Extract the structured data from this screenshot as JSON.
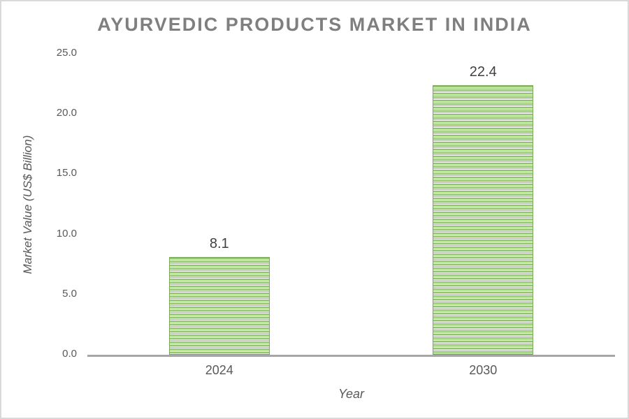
{
  "chart_data": {
    "type": "bar",
    "title": "AYURVEDIC PRODUCTS MARKET IN INDIA",
    "categories": [
      "2024",
      "2030"
    ],
    "values": [
      8.1,
      22.4
    ],
    "value_labels": [
      "8.1",
      "22.4"
    ],
    "xlabel": "Year",
    "ylabel": "Market Value (US$ Billion)",
    "ylim": [
      0,
      25
    ],
    "yticks": [
      0,
      5,
      10,
      15,
      20,
      25
    ],
    "ytick_labels": [
      "0.0",
      "5.0",
      "10.0",
      "15.0",
      "20.0",
      "25.0"
    ],
    "grid": false,
    "legend": false,
    "bar_fill_pattern": "horizontal-stripes",
    "colors": {
      "bar_green": "#8fc46d",
      "bar_green_2": "#9ccb7d",
      "bar_stripe_light": "#e7f2dd",
      "bar_stripe_white": "#fbfdf9",
      "bar_border": "#7aa95a",
      "axis_line": "#a6a6a6",
      "title_text": "#7f7f7f",
      "tick_text": "#595959",
      "value_label_text": "#404040"
    }
  }
}
